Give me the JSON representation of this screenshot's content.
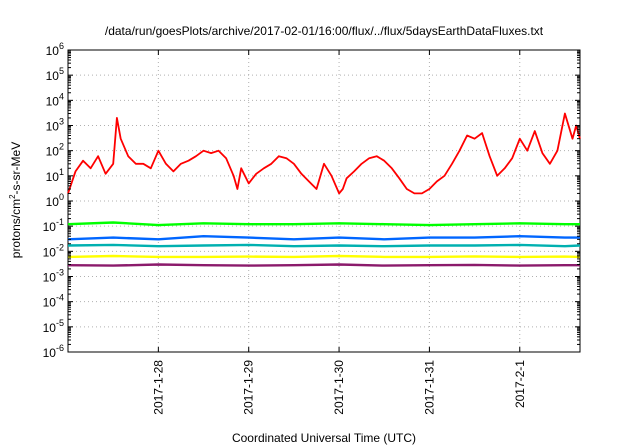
{
  "chart_data": {
    "type": "line",
    "title": "/data/run/goesPlots/archive/2017-02-01/16:00/flux/../flux/5daysEarthDataFluxes.txt",
    "xlabel": "Coordinated Universal Time (UTC)",
    "ylabel": {
      "prefix": "protons/cm",
      "sup": "2",
      "suffix": "-s-sr-MeV"
    },
    "y_scale": "log",
    "ylim": [
      1e-06,
      1000000.0
    ],
    "y_ticks": [
      {
        "value": 1e-06,
        "base": "10",
        "exp": "-6"
      },
      {
        "value": 1e-05,
        "base": "10",
        "exp": "-5"
      },
      {
        "value": 0.0001,
        "base": "10",
        "exp": "-4"
      },
      {
        "value": 0.001,
        "base": "10",
        "exp": "-3"
      },
      {
        "value": 0.01,
        "base": "10",
        "exp": "-2"
      },
      {
        "value": 0.1,
        "base": "10",
        "exp": "-1"
      },
      {
        "value": 1,
        "base": "10",
        "exp": "0"
      },
      {
        "value": 10,
        "base": "10",
        "exp": "1"
      },
      {
        "value": 100,
        "base": "10",
        "exp": "2"
      },
      {
        "value": 1000,
        "base": "10",
        "exp": "3"
      },
      {
        "value": 10000,
        "base": "10",
        "exp": "4"
      },
      {
        "value": 100000,
        "base": "10",
        "exp": "5"
      },
      {
        "value": 1000000,
        "base": "10",
        "exp": "6"
      }
    ],
    "xlim": [
      "2017-01-27T00:00",
      "2017-02-01T16:00"
    ],
    "x_ticks": [
      {
        "value": "2017-01-28T00:00",
        "label": "2017-1-28"
      },
      {
        "value": "2017-01-29T00:00",
        "label": "2017-1-29"
      },
      {
        "value": "2017-01-30T00:00",
        "label": "2017-1-30"
      },
      {
        "value": "2017-01-31T00:00",
        "label": "2017-1-31"
      },
      {
        "value": "2017-02-01T00:00",
        "label": "2017-2-1"
      }
    ],
    "grid": true,
    "series": [
      {
        "color": "#ff0000",
        "x": [
          "2017-01-27T00:00",
          "2017-01-27T02:00",
          "2017-01-27T04:00",
          "2017-01-27T06:00",
          "2017-01-27T08:00",
          "2017-01-27T10:00",
          "2017-01-27T12:00",
          "2017-01-27T13:00",
          "2017-01-27T14:00",
          "2017-01-27T16:00",
          "2017-01-27T18:00",
          "2017-01-27T20:00",
          "2017-01-27T22:00",
          "2017-01-28T00:00",
          "2017-01-28T02:00",
          "2017-01-28T04:00",
          "2017-01-28T06:00",
          "2017-01-28T08:00",
          "2017-01-28T10:00",
          "2017-01-28T12:00",
          "2017-01-28T14:00",
          "2017-01-28T16:00",
          "2017-01-28T18:00",
          "2017-01-28T20:00",
          "2017-01-28T21:00",
          "2017-01-28T22:00",
          "2017-01-29T00:00",
          "2017-01-29T02:00",
          "2017-01-29T04:00",
          "2017-01-29T06:00",
          "2017-01-29T08:00",
          "2017-01-29T10:00",
          "2017-01-29T12:00",
          "2017-01-29T14:00",
          "2017-01-29T16:00",
          "2017-01-29T18:00",
          "2017-01-29T20:00",
          "2017-01-29T22:00",
          "2017-01-30T00:00",
          "2017-01-30T01:00",
          "2017-01-30T02:00",
          "2017-01-30T04:00",
          "2017-01-30T06:00",
          "2017-01-30T08:00",
          "2017-01-30T10:00",
          "2017-01-30T12:00",
          "2017-01-30T14:00",
          "2017-01-30T16:00",
          "2017-01-30T18:00",
          "2017-01-30T20:00",
          "2017-01-30T22:00",
          "2017-01-31T00:00",
          "2017-01-31T02:00",
          "2017-01-31T04:00",
          "2017-01-31T06:00",
          "2017-01-31T08:00",
          "2017-01-31T10:00",
          "2017-01-31T12:00",
          "2017-01-31T14:00",
          "2017-01-31T16:00",
          "2017-01-31T18:00",
          "2017-01-31T20:00",
          "2017-01-31T22:00",
          "2017-02-01T00:00",
          "2017-02-01T02:00",
          "2017-02-01T04:00",
          "2017-02-01T06:00",
          "2017-02-01T08:00",
          "2017-02-01T10:00",
          "2017-02-01T12:00",
          "2017-02-01T14:00",
          "2017-02-01T15:00",
          "2017-02-01T16:00"
        ],
        "values": [
          2,
          15,
          40,
          20,
          60,
          12,
          30,
          2000,
          300,
          60,
          30,
          30,
          20,
          100,
          30,
          15,
          30,
          40,
          60,
          100,
          80,
          100,
          50,
          10,
          3,
          20,
          5,
          12,
          20,
          30,
          60,
          50,
          30,
          12,
          6,
          3,
          30,
          10,
          2,
          3,
          8,
          15,
          30,
          50,
          60,
          40,
          20,
          8,
          3,
          2,
          2,
          3,
          6,
          10,
          30,
          100,
          400,
          300,
          500,
          60,
          10,
          20,
          50,
          300,
          100,
          600,
          80,
          30,
          100,
          3000,
          300,
          1000,
          300
        ]
      },
      {
        "color": "#00ff00",
        "x": [
          "2017-01-27T00:00",
          "2017-01-27T12:00",
          "2017-01-28T00:00",
          "2017-01-28T12:00",
          "2017-01-29T00:00",
          "2017-01-29T12:00",
          "2017-01-30T00:00",
          "2017-01-30T12:00",
          "2017-01-31T00:00",
          "2017-01-31T12:00",
          "2017-02-01T00:00",
          "2017-02-01T12:00",
          "2017-02-01T16:00"
        ],
        "values": [
          0.12,
          0.14,
          0.11,
          0.13,
          0.12,
          0.12,
          0.13,
          0.12,
          0.11,
          0.12,
          0.13,
          0.12,
          0.12
        ]
      },
      {
        "color": "#0066ff",
        "x": [
          "2017-01-27T00:00",
          "2017-01-27T12:00",
          "2017-01-28T00:00",
          "2017-01-28T12:00",
          "2017-01-29T00:00",
          "2017-01-29T12:00",
          "2017-01-30T00:00",
          "2017-01-30T12:00",
          "2017-01-31T00:00",
          "2017-01-31T12:00",
          "2017-02-01T00:00",
          "2017-02-01T12:00",
          "2017-02-01T16:00"
        ],
        "values": [
          0.03,
          0.035,
          0.03,
          0.04,
          0.035,
          0.03,
          0.035,
          0.03,
          0.035,
          0.035,
          0.04,
          0.035,
          0.035
        ]
      },
      {
        "color": "#00b0b0",
        "x": [
          "2017-01-27T00:00",
          "2017-01-27T12:00",
          "2017-01-28T00:00",
          "2017-01-28T12:00",
          "2017-01-29T00:00",
          "2017-01-29T12:00",
          "2017-01-30T00:00",
          "2017-01-30T12:00",
          "2017-01-31T00:00",
          "2017-01-31T12:00",
          "2017-02-01T00:00",
          "2017-02-01T12:00",
          "2017-02-01T16:00"
        ],
        "values": [
          0.017,
          0.018,
          0.016,
          0.017,
          0.018,
          0.016,
          0.017,
          0.016,
          0.017,
          0.017,
          0.018,
          0.016,
          0.017
        ]
      },
      {
        "color": "#ffff00",
        "x": [
          "2017-01-27T00:00",
          "2017-01-27T12:00",
          "2017-01-28T00:00",
          "2017-01-28T12:00",
          "2017-01-29T00:00",
          "2017-01-29T12:00",
          "2017-01-30T00:00",
          "2017-01-30T12:00",
          "2017-01-31T00:00",
          "2017-01-31T12:00",
          "2017-02-01T00:00",
          "2017-02-01T12:00",
          "2017-02-01T16:00"
        ],
        "values": [
          0.006,
          0.0065,
          0.006,
          0.006,
          0.0062,
          0.006,
          0.0065,
          0.006,
          0.006,
          0.0063,
          0.006,
          0.0062,
          0.006
        ]
      },
      {
        "color": "#8b1a6b",
        "x": [
          "2017-01-27T00:00",
          "2017-01-27T12:00",
          "2017-01-28T00:00",
          "2017-01-28T12:00",
          "2017-01-29T00:00",
          "2017-01-29T12:00",
          "2017-01-30T00:00",
          "2017-01-30T12:00",
          "2017-01-31T00:00",
          "2017-01-31T12:00",
          "2017-02-01T00:00",
          "2017-02-01T12:00",
          "2017-02-01T16:00"
        ],
        "values": [
          0.0028,
          0.0027,
          0.003,
          0.0028,
          0.0027,
          0.0028,
          0.003,
          0.0027,
          0.0028,
          0.0029,
          0.0027,
          0.0028,
          0.0028
        ]
      }
    ]
  }
}
